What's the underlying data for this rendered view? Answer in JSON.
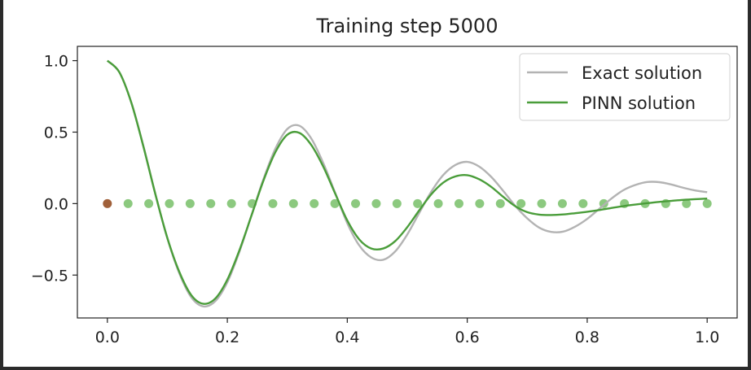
{
  "chart_data": {
    "type": "line",
    "title": "Training step 5000",
    "xlabel": "",
    "ylabel": "",
    "xlim": [
      -0.05,
      1.05
    ],
    "ylim": [
      -0.8,
      1.1
    ],
    "xticks": [
      0.0,
      0.2,
      0.4,
      0.6,
      0.8,
      1.0
    ],
    "xtick_labels": [
      "0.0",
      "0.2",
      "0.4",
      "0.6",
      "0.8",
      "1.0"
    ],
    "yticks": [
      1.0,
      0.5,
      0.0,
      -0.5
    ],
    "ytick_labels": [
      "1.0",
      "0.5",
      "0.0",
      "−0.5"
    ],
    "legend_position": "upper right",
    "series": [
      {
        "name": "Exact solution",
        "color": "#b3b3b3",
        "x": [
          0.0,
          0.02,
          0.04,
          0.06,
          0.08,
          0.1,
          0.12,
          0.14,
          0.16,
          0.18,
          0.2,
          0.22,
          0.24,
          0.26,
          0.28,
          0.3,
          0.32,
          0.34,
          0.36,
          0.38,
          0.4,
          0.42,
          0.44,
          0.46,
          0.48,
          0.5,
          0.52,
          0.54,
          0.56,
          0.58,
          0.6,
          0.62,
          0.64,
          0.66,
          0.68,
          0.7,
          0.72,
          0.74,
          0.76,
          0.78,
          0.8,
          0.82,
          0.84,
          0.86,
          0.88,
          0.9,
          0.92,
          0.94,
          0.96,
          0.98,
          1.0
        ],
        "y": [
          1.0,
          0.919,
          0.707,
          0.404,
          0.068,
          -0.243,
          -0.488,
          -0.656,
          -0.719,
          -0.682,
          -0.55,
          -0.338,
          -0.085,
          0.168,
          0.383,
          0.522,
          0.545,
          0.455,
          0.283,
          0.073,
          -0.137,
          -0.293,
          -0.377,
          -0.393,
          -0.334,
          -0.216,
          -0.065,
          0.083,
          0.2,
          0.27,
          0.292,
          0.259,
          0.187,
          0.089,
          -0.016,
          -0.103,
          -0.168,
          -0.198,
          -0.196,
          -0.161,
          -0.107,
          -0.037,
          0.034,
          0.093,
          0.13,
          0.151,
          0.15,
          0.134,
          0.111,
          0.092,
          0.08
        ]
      },
      {
        "name": "PINN solution",
        "color": "#4a9d3a",
        "x": [
          0.0,
          0.02,
          0.04,
          0.06,
          0.08,
          0.1,
          0.12,
          0.14,
          0.16,
          0.18,
          0.2,
          0.22,
          0.24,
          0.26,
          0.28,
          0.3,
          0.32,
          0.34,
          0.36,
          0.38,
          0.4,
          0.42,
          0.44,
          0.46,
          0.48,
          0.5,
          0.52,
          0.54,
          0.56,
          0.58,
          0.6,
          0.62,
          0.64,
          0.66,
          0.68,
          0.7,
          0.72,
          0.74,
          0.76,
          0.78,
          0.8,
          0.82,
          0.84,
          0.86,
          0.88,
          0.9,
          0.92,
          0.94,
          0.96,
          0.98,
          1.0
        ],
        "y": [
          1.0,
          0.919,
          0.705,
          0.4,
          0.066,
          -0.24,
          -0.478,
          -0.641,
          -0.701,
          -0.664,
          -0.532,
          -0.328,
          -0.087,
          0.158,
          0.359,
          0.482,
          0.495,
          0.41,
          0.258,
          0.068,
          -0.118,
          -0.251,
          -0.314,
          -0.314,
          -0.262,
          -0.165,
          -0.047,
          0.065,
          0.147,
          0.19,
          0.199,
          0.17,
          0.117,
          0.047,
          -0.018,
          -0.06,
          -0.077,
          -0.08,
          -0.076,
          -0.067,
          -0.057,
          -0.045,
          -0.031,
          -0.018,
          -0.007,
          0.003,
          0.012,
          0.019,
          0.026,
          0.031,
          0.035
        ]
      }
    ],
    "collocation_points": {
      "color": "#8cc97f",
      "x": [
        0.0345,
        0.069,
        0.1034,
        0.1379,
        0.1724,
        0.2069,
        0.2414,
        0.2759,
        0.3103,
        0.3448,
        0.3793,
        0.4138,
        0.4483,
        0.4828,
        0.5172,
        0.5517,
        0.5862,
        0.6207,
        0.6552,
        0.6897,
        0.7241,
        0.7586,
        0.7931,
        0.8276,
        0.8621,
        0.8966,
        0.931,
        0.9655,
        1.0
      ],
      "y": [
        0,
        0,
        0,
        0,
        0,
        0,
        0,
        0,
        0,
        0,
        0,
        0,
        0,
        0,
        0,
        0,
        0,
        0,
        0,
        0,
        0,
        0,
        0,
        0,
        0,
        0,
        0,
        0,
        0
      ]
    },
    "boundary_point": {
      "color": "#a0603a",
      "x": 0.0,
      "y": 0.0
    }
  }
}
